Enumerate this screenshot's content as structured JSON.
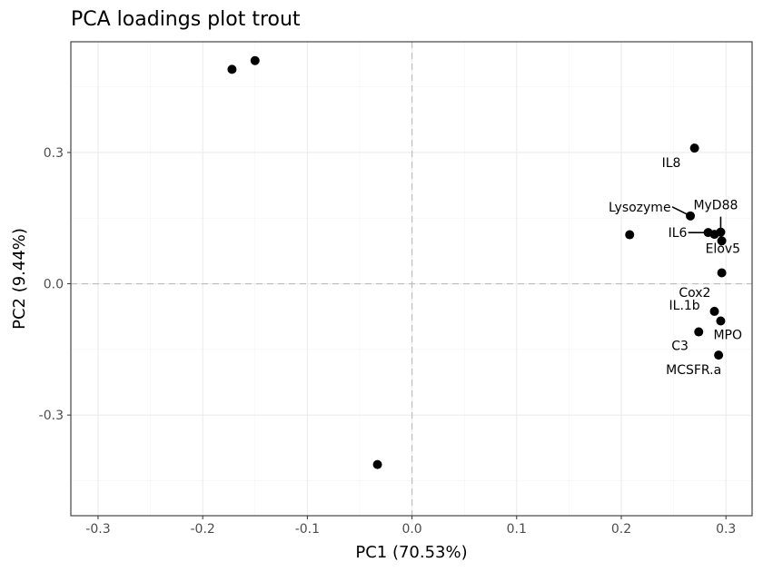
{
  "chart_data": {
    "type": "scatter",
    "title": "PCA loadings plot trout",
    "xlabel": "PC1 (70.53%)",
    "ylabel": "PC2 (9.44%)",
    "xlim": [
      -0.326,
      0.325
    ],
    "ylim": [
      -0.53,
      0.553
    ],
    "x_ticks": [
      -0.3,
      -0.2,
      -0.1,
      0.0,
      0.1,
      0.2,
      0.3
    ],
    "x_tick_labels": [
      "-0.3",
      "-0.2",
      "-0.1",
      "0.0",
      "0.1",
      "0.2",
      "0.3"
    ],
    "y_ticks": [
      -0.3,
      0.0,
      0.3
    ],
    "y_tick_labels": [
      "-0.3",
      "0.0",
      "0.3"
    ],
    "reference_lines": {
      "x": 0,
      "y": 0,
      "style": "dashed"
    },
    "grid": true,
    "colors": {
      "point": "#000000",
      "panel_border": "#333333",
      "grid_major": "#ebebeb",
      "grid_minor": "#f3f3f3",
      "reference_line": "#bdbdbd",
      "tick_label": "#4d4d4d"
    },
    "points": [
      {
        "x": -0.172,
        "y": 0.49,
        "label": ""
      },
      {
        "x": -0.15,
        "y": 0.51,
        "label": ""
      },
      {
        "x": -0.033,
        "y": -0.413,
        "label": ""
      },
      {
        "x": 0.208,
        "y": 0.112,
        "label": ""
      },
      {
        "x": 0.27,
        "y": 0.31,
        "label": "IL8"
      },
      {
        "x": 0.266,
        "y": 0.155,
        "label": "Lysozyme"
      },
      {
        "x": 0.283,
        "y": 0.117,
        "label": "IL6"
      },
      {
        "x": 0.289,
        "y": 0.113,
        "label": ""
      },
      {
        "x": 0.295,
        "y": 0.118,
        "label": "MyD88"
      },
      {
        "x": 0.296,
        "y": 0.098,
        "label": ""
      },
      {
        "x": 0.296,
        "y": 0.025,
        "label": "Elov5"
      },
      {
        "x": 0.289,
        "y": -0.063,
        "label": "IL.1b"
      },
      {
        "x": 0.295,
        "y": -0.085,
        "label": "MPO"
      },
      {
        "x": 0.274,
        "y": -0.11,
        "label": "C3"
      },
      {
        "x": 0.293,
        "y": -0.163,
        "label": "MCSFR.a"
      }
    ],
    "free_labels": [
      {
        "x": 0.255,
        "y": -0.001,
        "label": "Cox2"
      }
    ]
  }
}
